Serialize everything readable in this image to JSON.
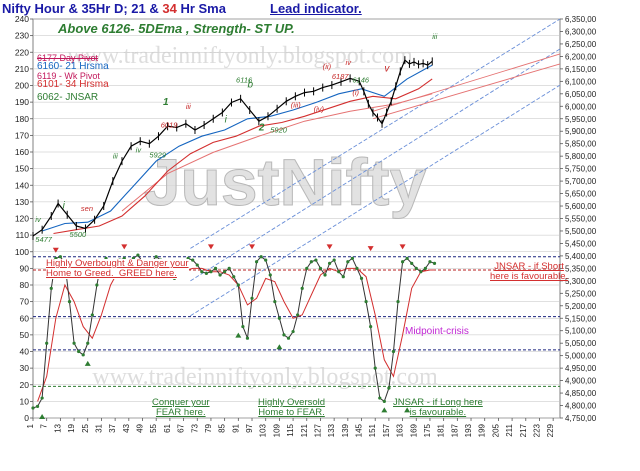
{
  "header": {
    "title_part1": "Nifty Hour & 35Hr D; 21 & ",
    "title_red": "34",
    "title_part2": " Hr Sma",
    "lead": "Lead indicator.",
    "subtitle": "Above 6126-  5DEma ,  Strength- ST  UP."
  },
  "legend": {
    "day_pivot": "6177  Day Pivot",
    "hrsma21": "6160- 21 Hrsma",
    "wk_pivot": "6119 - Wk Pivot",
    "hrsma34": "6101- 34 Hrsma",
    "jnsar": "6062- JNSAR"
  },
  "watermarks": {
    "url_top": "www.tradeinniftyonly.blogspot.com",
    "url_bottom": "www.tradeinniftyonly.blogspot.com",
    "brand": "JustNifty"
  },
  "annotations": {
    "overbought": "Highly Overbought & Danger your\nHome to Greed.  GREED here.",
    "jnsar_short": "JNSAR - if Short\nhere is favourable.",
    "midpoint": "Midpoint-crisis",
    "conquer": "Conquer your\nFEAR here.",
    "oversold": "Highly Oversold\nHome to FEAR.",
    "jnsar_long": "JNSAR - if Long here\nis favourable."
  },
  "price_labels": [
    {
      "text": "5477",
      "color": "#2e7d32"
    },
    {
      "text": "5500",
      "color": "#2e7d32"
    },
    {
      "text": "sen",
      "color": "#c62828"
    },
    {
      "text": "i",
      "color": "#2e7d32"
    },
    {
      "text": "iv",
      "color": "#2e7d32"
    },
    {
      "text": "iii",
      "color": "#2e7d32"
    },
    {
      "text": "iv",
      "color": "#2e7d32"
    },
    {
      "text": "5929",
      "color": "#2e7d32"
    },
    {
      "text": "6019",
      "color": "#c62828"
    },
    {
      "text": "1",
      "color": "#2e7d32"
    },
    {
      "text": "iii",
      "color": "#c62828"
    },
    {
      "text": "6116",
      "color": "#2e7d32"
    },
    {
      "text": "b",
      "color": "#2e7d32"
    },
    {
      "text": "5920",
      "color": "#2e7d32"
    },
    {
      "text": "2",
      "color": "#2e7d32"
    },
    {
      "text": "(iii)",
      "color": "#c62828"
    },
    {
      "text": "6187",
      "color": "#c62828"
    },
    {
      "text": "6146",
      "color": "#2e7d32"
    },
    {
      "text": "(iv)",
      "color": "#c62828"
    },
    {
      "text": "(i)",
      "color": "#c62828"
    },
    {
      "text": "(ii)",
      "color": "#c62828"
    },
    {
      "text": "iv",
      "color": "#c62828"
    },
    {
      "text": "v",
      "color": "#c62828"
    },
    {
      "text": "iii",
      "color": "#2e7d32"
    },
    {
      "text": "i",
      "color": "#2e7d32"
    }
  ],
  "chart_data": [
    {
      "type": "line",
      "name": "price",
      "x_ticks": [
        "1",
        "7",
        "13",
        "19",
        "25",
        "31",
        "37",
        "43",
        "49",
        "55",
        "61",
        "67",
        "73",
        "79",
        "85",
        "91",
        "97",
        "103",
        "109",
        "115",
        "121",
        "127",
        "133",
        "139",
        "145",
        "151",
        "157",
        "163",
        "169",
        "175",
        "181",
        "187",
        "193",
        "199",
        "205",
        "211",
        "217",
        "223",
        "229"
      ],
      "xlim": [
        1,
        232
      ],
      "left_axis": {
        "ylim": [
          0,
          240
        ],
        "ticks": [
          "0",
          "10",
          "20",
          "30",
          "40",
          "50",
          "60",
          "70",
          "80",
          "90",
          "100",
          "110",
          "120",
          "130",
          "140",
          "150",
          "160",
          "170",
          "180",
          "190",
          "200",
          "210",
          "220",
          "230",
          "240"
        ]
      },
      "right_axis": {
        "ylim": [
          4750,
          6350
        ],
        "ticks": [
          "4,750,00",
          "4,800,00",
          "4,850,00",
          "4,900,00",
          "4,950,00",
          "5,000,00",
          "5,050,00",
          "5,100,00",
          "5,150,00",
          "5,200,00",
          "5,250,00",
          "5,300,00",
          "5,350,00",
          "5,400,00",
          "5,450,00",
          "5,500,00",
          "5,550,00",
          "5,600,00",
          "5,650,00",
          "5,700,00",
          "5,750,00",
          "5,800,00",
          "5,850,00",
          "5,900,00",
          "5,950,00",
          "6,000,00",
          "6,050,00",
          "6,100,00",
          "6,150,00",
          "6,200,00",
          "6,250,00",
          "6,300,00",
          "6,350,00"
        ]
      },
      "price_right_units": {
        "x": [
          1,
          5,
          9,
          12,
          16,
          20,
          24,
          28,
          32,
          36,
          40,
          44,
          48,
          52,
          56,
          60,
          64,
          68,
          72,
          76,
          80,
          84,
          88,
          92,
          96,
          100,
          104,
          108,
          112,
          116,
          120,
          124,
          128,
          132,
          136,
          140,
          144,
          146,
          148,
          150,
          152,
          154,
          156,
          158,
          160,
          162,
          164,
          166,
          168,
          170,
          172,
          174,
          176
        ],
        "y": [
          5480,
          5505,
          5560,
          5610,
          5565,
          5520,
          5510,
          5545,
          5600,
          5700,
          5780,
          5840,
          5860,
          5850,
          5880,
          5920,
          5915,
          5930,
          5905,
          5925,
          5950,
          5975,
          6015,
          6030,
          5985,
          5940,
          5960,
          5990,
          6020,
          6040,
          6055,
          6060,
          6075,
          6085,
          6098,
          6112,
          6100,
          6060,
          6010,
          5975,
          5955,
          5930,
          5975,
          6020,
          6080,
          6140,
          6185,
          6170,
          6178,
          6168,
          6172,
          6165,
          6180
        ]
      },
      "sma21_right_units": {
        "x": [
          5,
          15,
          25,
          35,
          45,
          55,
          65,
          75,
          85,
          95,
          105,
          115,
          125,
          135,
          145,
          155,
          165,
          176
        ],
        "y": [
          5500,
          5530,
          5535,
          5580,
          5680,
          5780,
          5840,
          5880,
          5905,
          5950,
          5960,
          5985,
          6015,
          6050,
          6070,
          6040,
          6110,
          6165
        ]
      },
      "sma34_right_units": {
        "x": [
          10,
          20,
          30,
          40,
          50,
          60,
          70,
          80,
          90,
          100,
          110,
          120,
          130,
          140,
          150,
          160,
          170,
          176
        ],
        "y": [
          5490,
          5505,
          5520,
          5560,
          5640,
          5740,
          5810,
          5855,
          5880,
          5920,
          5935,
          5960,
          5990,
          6020,
          6040,
          6030,
          6070,
          6110
        ]
      },
      "sma35d_right_units": {
        "x": [
          40,
          60,
          80,
          100,
          120,
          140,
          160,
          176
        ],
        "y": [
          5580,
          5730,
          5815,
          5880,
          5940,
          5980,
          6010,
          6050
        ]
      },
      "indicator_left_units": {
        "x": [
          1,
          3,
          5,
          7,
          9,
          11,
          13,
          15,
          17,
          19,
          21,
          23,
          25,
          27,
          29,
          31,
          33,
          35,
          37,
          39,
          41,
          43,
          45,
          47,
          49,
          51,
          53,
          55,
          57,
          59,
          61,
          63,
          65,
          67,
          69,
          71,
          73,
          75,
          77,
          79,
          81,
          83,
          85,
          87,
          89,
          91,
          93,
          95,
          97,
          99,
          101,
          103,
          105,
          107,
          109,
          111,
          113,
          115,
          117,
          119,
          121,
          123,
          125,
          127,
          129,
          131,
          133,
          135,
          137,
          139,
          141,
          143,
          145,
          147,
          149,
          151,
          153,
          155,
          157,
          159,
          161,
          163,
          165,
          167,
          169,
          171,
          173,
          175,
          177
        ],
        "y": [
          6,
          7,
          12,
          45,
          78,
          96,
          97,
          93,
          70,
          45,
          40,
          38,
          45,
          62,
          80,
          94,
          96,
          94,
          92,
          95,
          96,
          93,
          96,
          98,
          94,
          88,
          94,
          97,
          95,
          90,
          86,
          84,
          87,
          94,
          96,
          95,
          92,
          88,
          87,
          88,
          90,
          86,
          88,
          90,
          85,
          80,
          55,
          48,
          72,
          94,
          97,
          95,
          86,
          70,
          60,
          50,
          48,
          52,
          62,
          78,
          90,
          94,
          95,
          90,
          86,
          93,
          95,
          88,
          85,
          94,
          96,
          90,
          84,
          70,
          55,
          30,
          12,
          10,
          18,
          40,
          70,
          94,
          96,
          93,
          90,
          88,
          90,
          94,
          93
        ]
      },
      "indicator_sma_left_units": {
        "x": [
          3,
          7,
          11,
          15,
          19,
          23,
          27,
          31,
          35,
          39,
          43,
          47,
          51,
          55,
          59,
          63,
          67,
          71,
          75,
          79,
          83,
          87,
          91,
          95,
          99,
          103,
          107,
          111,
          115,
          119,
          123,
          127,
          131,
          135,
          139,
          143,
          147,
          151,
          155,
          159,
          163,
          167,
          171,
          175,
          177
        ],
        "y": [
          10,
          25,
          60,
          80,
          70,
          55,
          48,
          62,
          80,
          90,
          93,
          94,
          92,
          93,
          91,
          88,
          88,
          90,
          90,
          88,
          88,
          86,
          80,
          68,
          72,
          84,
          82,
          70,
          60,
          62,
          74,
          86,
          90,
          88,
          90,
          90,
          85,
          62,
          35,
          25,
          50,
          78,
          88,
          89,
          89
        ]
      },
      "horizontal_levels_left_units": [
        {
          "y": 97,
          "color": "#1a237e"
        },
        {
          "y": 89,
          "color": "#b71c1c"
        },
        {
          "y": 61,
          "color": "#1a237e"
        },
        {
          "y": 41,
          "color": "#1a237e"
        },
        {
          "y": 19,
          "color": "#2e7d32"
        }
      ]
    }
  ],
  "colors": {
    "price": "#000000",
    "sma21": "#1565c0",
    "sma34": "#d32f2f",
    "indicator": "#2e7d32",
    "indicator_sma": "#d32f2f",
    "channel": "#6a8fd8",
    "grid": "#c0c0c0"
  }
}
